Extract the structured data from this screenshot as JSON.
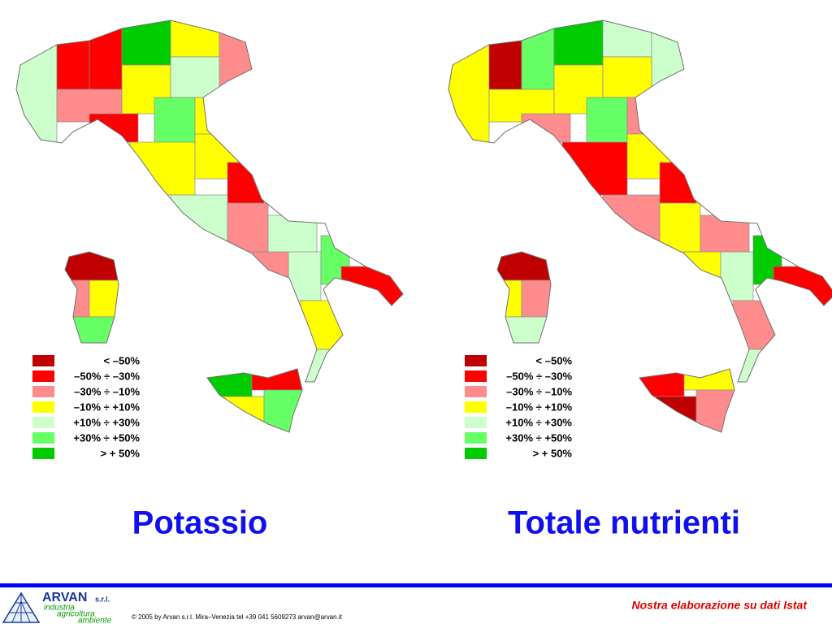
{
  "legend": [
    {
      "label": "< –50%",
      "color": "#c00000"
    },
    {
      "label": "–50% ÷ –30%",
      "color": "#ff0000"
    },
    {
      "label": "–30% ÷ –10%",
      "color": "#ff8c8c"
    },
    {
      "label": "–10% ÷ +10%",
      "color": "#ffff00"
    },
    {
      "label": "+10% ÷ +30%",
      "color": "#ccffcc"
    },
    {
      "label": "+30% ÷ +50%",
      "color": "#66ff66"
    },
    {
      "label": "> + 50%",
      "color": "#00cc00"
    }
  ],
  "maps": [
    {
      "title": "Potassio"
    },
    {
      "title": "Totale nutrienti"
    }
  ],
  "footer": {
    "company": "ARVAN",
    "suffix": "s.r.l.",
    "tagline": [
      "industria",
      "agricoltura",
      "ambiente"
    ],
    "copyright": "© 2005 by Arvan s.r.l. Mira–Venezia tel +39 041 5609273 arvan@arvan.it",
    "source": "Nostra elaborazione su dati Istat"
  }
}
